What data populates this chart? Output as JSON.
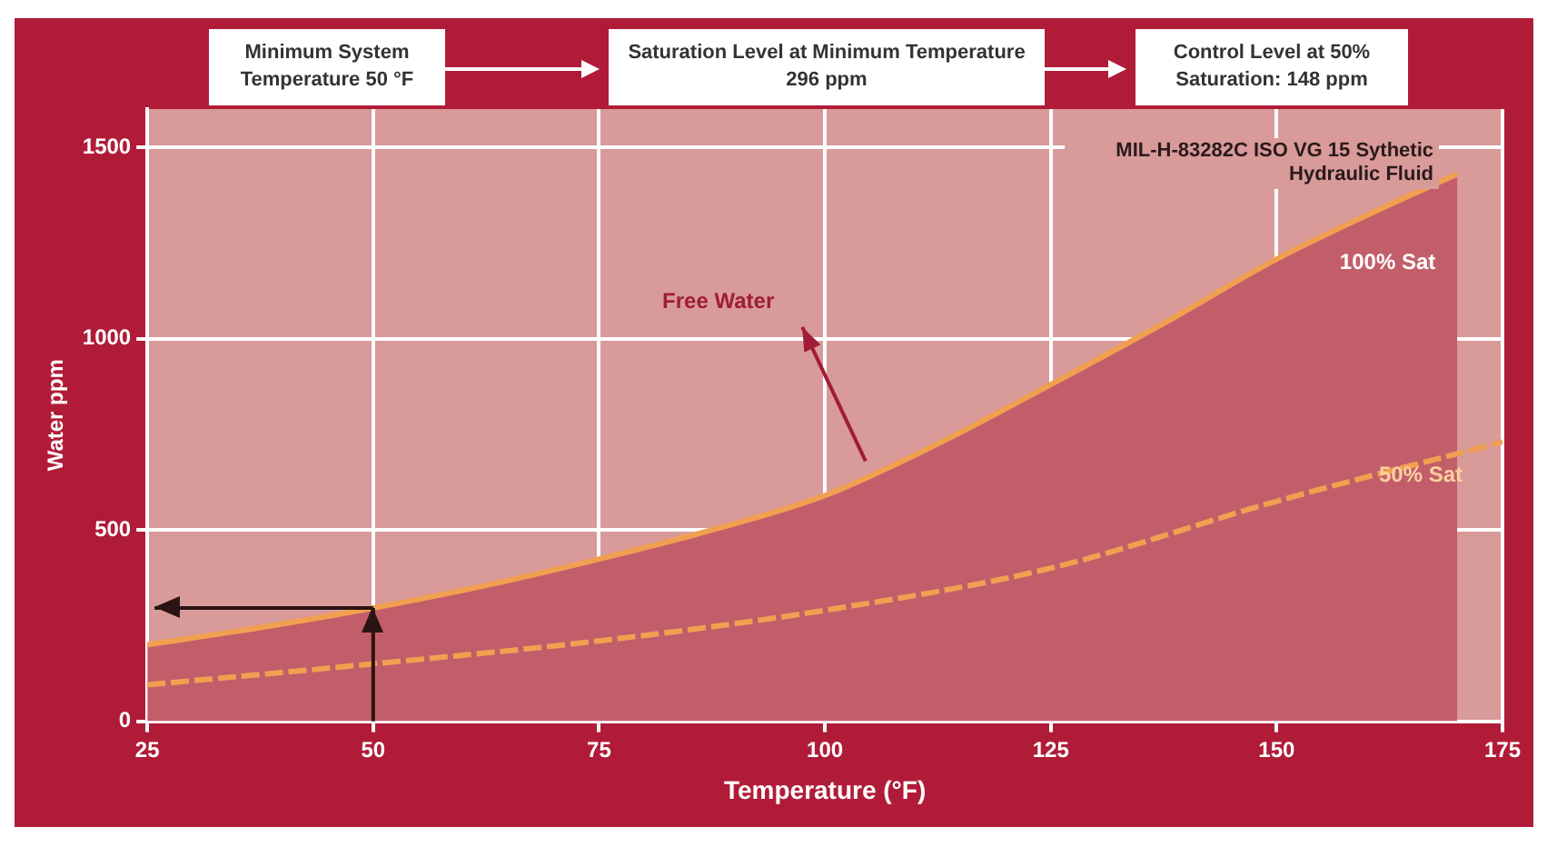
{
  "chart_data": {
    "type": "line",
    "xlabel": "Temperature (°F)",
    "ylabel": "Water ppm",
    "xlim": [
      25,
      175
    ],
    "xticks": [
      25,
      50,
      75,
      100,
      125,
      150,
      175
    ],
    "ylim": [
      0,
      1600
    ],
    "yticks": [
      0,
      500,
      1000,
      1500
    ],
    "grid": true,
    "legend": false,
    "marker": "none",
    "series": [
      {
        "name": "100% Sat",
        "type": "area",
        "color": "#f0a050",
        "line_style": "solid",
        "x": [
          25,
          37.5,
          50,
          62.5,
          75,
          87.5,
          100,
          112.5,
          125,
          137.5,
          150,
          162.5,
          170
        ],
        "values": [
          200,
          245,
          296,
          355,
          424,
          500,
          590,
          725,
          880,
          1040,
          1208,
          1350,
          1430
        ]
      },
      {
        "name": "50% Sat",
        "color": "#f0a050",
        "line_style": "dashed",
        "x": [
          25,
          50,
          75,
          100,
          125,
          150,
          175
        ],
        "values": [
          95,
          150,
          210,
          290,
          400,
          575,
          730
        ]
      }
    ],
    "ref_lines": [
      {
        "axis": "x",
        "value": 50,
        "color": "#2a1414"
      },
      {
        "axis": "y",
        "value": 296,
        "color": "#2a1414"
      }
    ],
    "annotations": [
      "Minimum System Temperature 50 °F",
      "Saturation Level at Minimum Temperature 296 ppm",
      "Control Level at 50% Saturation: 148 ppm",
      "MIL-H-83282C ISO VG 15 Sythetic Hydraulic Fluid",
      "Free Water"
    ]
  }
}
